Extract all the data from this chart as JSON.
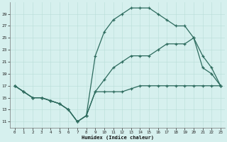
{
  "xlabel": "Humidex (Indice chaleur)",
  "bg_color": "#d6f0ee",
  "line_color": "#2d6b5e",
  "grid_color": "#b8ddd8",
  "line1_x": [
    0,
    1,
    2,
    3,
    4,
    5,
    6,
    7,
    8,
    9,
    10,
    11,
    12,
    13,
    14,
    15,
    16,
    17,
    18,
    19,
    20,
    21,
    22,
    23
  ],
  "line1_y": [
    17,
    16,
    15,
    15,
    14.5,
    14,
    13,
    11,
    12,
    16,
    16,
    16,
    16,
    16.5,
    17,
    17,
    17,
    17,
    17,
    17,
    17,
    17,
    17,
    17
  ],
  "line2_x": [
    0,
    1,
    2,
    3,
    4,
    5,
    6,
    7,
    8,
    9,
    10,
    11,
    12,
    13,
    14,
    15,
    16,
    17,
    18,
    19,
    20,
    21,
    22,
    23
  ],
  "line2_y": [
    17,
    16,
    15,
    15,
    14.5,
    14,
    13,
    11,
    12,
    16,
    18,
    20,
    21,
    22,
    22,
    22,
    23,
    24,
    24,
    24,
    25,
    22,
    20,
    17
  ],
  "line3_x": [
    0,
    1,
    2,
    3,
    4,
    5,
    6,
    7,
    8,
    9,
    10,
    11,
    12,
    13,
    14,
    15,
    16,
    17,
    18,
    19,
    20,
    21,
    22,
    23
  ],
  "line3_y": [
    17,
    16,
    15,
    15,
    14.5,
    14,
    13,
    11,
    12,
    22,
    26,
    28,
    29,
    30,
    30,
    30,
    29,
    28,
    27,
    27,
    25,
    20,
    19,
    17
  ],
  "xlim": [
    -0.5,
    23.5
  ],
  "ylim": [
    10,
    31
  ],
  "xticks": [
    0,
    1,
    2,
    3,
    4,
    5,
    6,
    7,
    8,
    9,
    10,
    11,
    12,
    13,
    14,
    15,
    16,
    17,
    18,
    19,
    20,
    21,
    22,
    23
  ],
  "yticks": [
    11,
    13,
    15,
    17,
    19,
    21,
    23,
    25,
    27,
    29
  ],
  "marker": "+",
  "markersize": 3.5,
  "linewidth": 0.9
}
